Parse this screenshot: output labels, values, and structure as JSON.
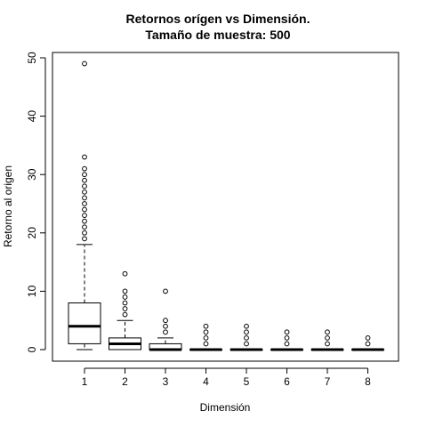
{
  "chart_data": {
    "type": "boxplot",
    "title": "Retornos orígen vs Dimensión.",
    "subtitle": "Tamaño de muestra:  500",
    "xlabel": "Dimensión",
    "ylabel": "Retorno al origen",
    "categories": [
      "1",
      "2",
      "3",
      "4",
      "5",
      "6",
      "7",
      "8"
    ],
    "yticks": [
      0,
      10,
      20,
      30,
      40,
      50
    ],
    "ylim": [
      -2,
      51
    ],
    "grid": false,
    "legend": "none",
    "boxes": [
      {
        "category": "1",
        "min": 0,
        "q1": 1,
        "median": 4,
        "q3": 8,
        "max": 18,
        "outliers": [
          19,
          20,
          21,
          22,
          23,
          24,
          25,
          26,
          27,
          28,
          29,
          30,
          31,
          33,
          49
        ]
      },
      {
        "category": "2",
        "min": 0,
        "q1": 0,
        "median": 1,
        "q3": 2,
        "max": 5,
        "outliers": [
          6,
          7,
          8,
          9,
          10,
          13
        ]
      },
      {
        "category": "3",
        "min": 0,
        "q1": 0,
        "median": 0,
        "q3": 1,
        "max": 2,
        "outliers": [
          3,
          4,
          5,
          10
        ]
      },
      {
        "category": "4",
        "min": 0,
        "q1": 0,
        "median": 0,
        "q3": 0,
        "max": 0,
        "outliers": [
          1,
          2,
          3,
          4
        ]
      },
      {
        "category": "5",
        "min": 0,
        "q1": 0,
        "median": 0,
        "q3": 0,
        "max": 0,
        "outliers": [
          1,
          2,
          3,
          4
        ]
      },
      {
        "category": "6",
        "min": 0,
        "q1": 0,
        "median": 0,
        "q3": 0,
        "max": 0,
        "outliers": [
          1,
          2,
          3
        ]
      },
      {
        "category": "7",
        "min": 0,
        "q1": 0,
        "median": 0,
        "q3": 0,
        "max": 0,
        "outliers": [
          1,
          2,
          3
        ]
      },
      {
        "category": "8",
        "min": 0,
        "q1": 0,
        "median": 0,
        "q3": 0,
        "max": 0,
        "outliers": [
          1,
          2
        ]
      }
    ]
  }
}
